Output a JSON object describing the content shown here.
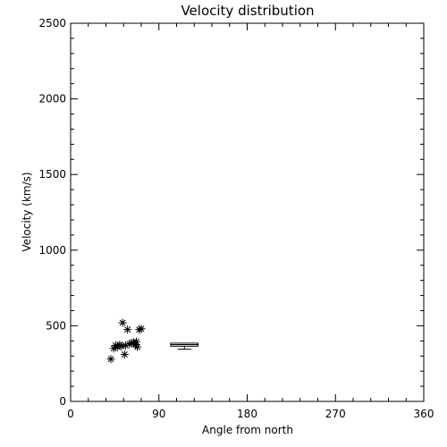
{
  "chart_data": {
    "type": "scatter",
    "title": "Velocity distribution",
    "xlabel": "Angle from north",
    "ylabel": "Velocity (km/s)",
    "xlim": [
      0,
      360
    ],
    "ylim": [
      0,
      2500
    ],
    "xticks": [
      "0",
      "90",
      "180",
      "270",
      "360"
    ],
    "yticks": [
      "0",
      "500",
      "1000",
      "1500",
      "2000",
      "2500"
    ],
    "grid": false,
    "legend": "none",
    "marker": "asterisk",
    "color": "#000000",
    "series": [
      {
        "x": [
          41,
          44,
          46,
          48,
          50,
          52,
          53,
          55,
          56,
          58,
          60,
          62,
          64,
          66,
          67,
          68,
          70,
          72
        ],
        "y": [
          280,
          350,
          370,
          360,
          375,
          365,
          520,
          310,
          370,
          475,
          380,
          385,
          390,
          375,
          395,
          360,
          475,
          480
        ]
      }
    ],
    "boxplot": {
      "x_range": [
        102,
        130
      ],
      "q1": 365,
      "median": 375,
      "q3": 385,
      "whisker_low": 345,
      "whisker_high": 385,
      "cap_x_range": [
        109,
        123
      ]
    }
  }
}
